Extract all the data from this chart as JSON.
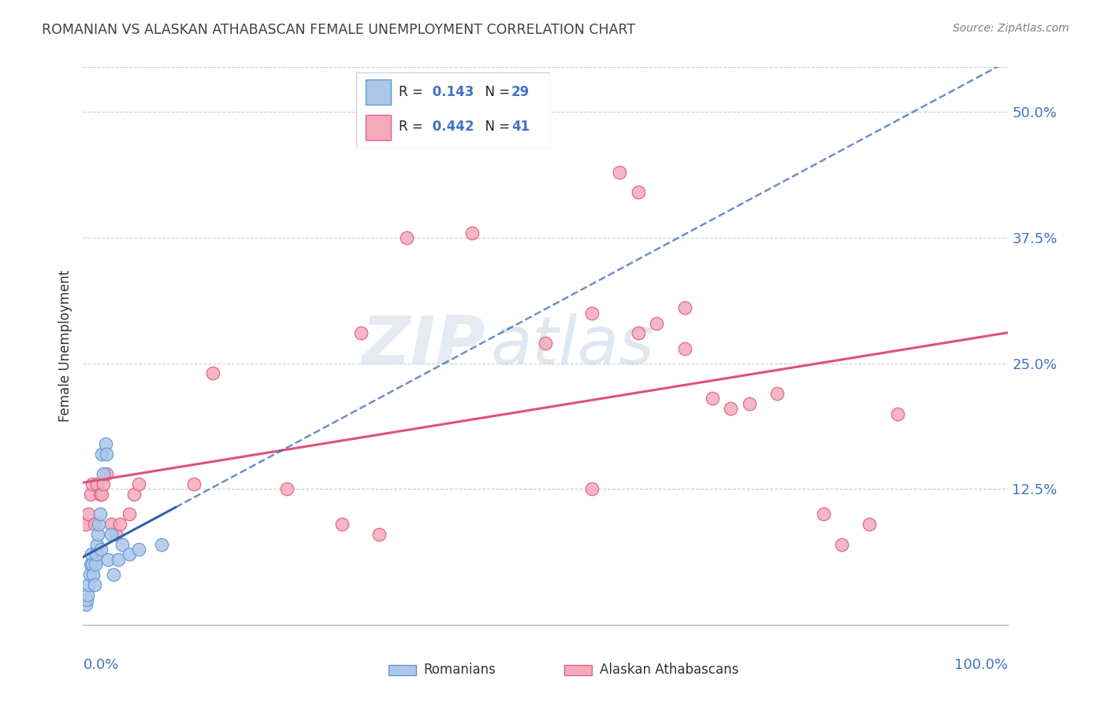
{
  "title": "ROMANIAN VS ALASKAN ATHABASCAN FEMALE UNEMPLOYMENT CORRELATION CHART",
  "source": "Source: ZipAtlas.com",
  "ylabel": "Female Unemployment",
  "watermark_zip": "ZIP",
  "watermark_atlas": "atlas",
  "romanian_R": "0.143",
  "romanian_N": "29",
  "athabascan_R": "0.442",
  "athabascan_N": "41",
  "legend_label1": "Romanians",
  "legend_label2": "Alaskan Athabascans",
  "romanian_color": "#aec6e8",
  "romanian_edge": "#5b9bd5",
  "athabascan_color": "#f4aabc",
  "athabascan_edge": "#e06080",
  "romanian_line_color": "#3060b0",
  "athabascan_line_color": "#e0507a",
  "blue_text": "#4472c4",
  "title_color": "#404040",
  "source_color": "#808080",
  "grid_color": "#cccccc",
  "romanian_x": [
    0.003,
    0.004,
    0.005,
    0.006,
    0.007,
    0.008,
    0.009,
    0.01,
    0.011,
    0.012,
    0.013,
    0.014,
    0.015,
    0.016,
    0.017,
    0.018,
    0.019,
    0.02,
    0.022,
    0.024,
    0.025,
    0.027,
    0.03,
    0.033,
    0.038,
    0.042,
    0.05,
    0.06,
    0.085
  ],
  "romanian_y": [
    0.01,
    0.015,
    0.02,
    0.03,
    0.04,
    0.05,
    0.06,
    0.05,
    0.04,
    0.03,
    0.05,
    0.06,
    0.07,
    0.08,
    0.09,
    0.1,
    0.065,
    0.16,
    0.14,
    0.17,
    0.16,
    0.055,
    0.08,
    0.04,
    0.055,
    0.07,
    0.06,
    0.065,
    0.07
  ],
  "athabascan_x": [
    0.003,
    0.006,
    0.008,
    0.01,
    0.012,
    0.015,
    0.018,
    0.02,
    0.022,
    0.025,
    0.03,
    0.035,
    0.04,
    0.05,
    0.055,
    0.06,
    0.12,
    0.14,
    0.3,
    0.35,
    0.42,
    0.5,
    0.55,
    0.58,
    0.6,
    0.62,
    0.65,
    0.7,
    0.72,
    0.75,
    0.8,
    0.82,
    0.85,
    0.88,
    0.6,
    0.65,
    0.68,
    0.22,
    0.28,
    0.32,
    0.55
  ],
  "athabascan_y": [
    0.09,
    0.1,
    0.12,
    0.13,
    0.09,
    0.13,
    0.12,
    0.12,
    0.13,
    0.14,
    0.09,
    0.08,
    0.09,
    0.1,
    0.12,
    0.13,
    0.13,
    0.24,
    0.28,
    0.375,
    0.38,
    0.27,
    0.3,
    0.44,
    0.42,
    0.29,
    0.305,
    0.205,
    0.21,
    0.22,
    0.1,
    0.07,
    0.09,
    0.2,
    0.28,
    0.265,
    0.215,
    0.125,
    0.09,
    0.08,
    0.125
  ],
  "xlim": [
    0,
    1.0
  ],
  "ylim": [
    -0.01,
    0.545
  ],
  "yticks": [
    0.0,
    0.125,
    0.25,
    0.375,
    0.5
  ],
  "ytick_labels": [
    "",
    "12.5%",
    "25.0%",
    "37.5%",
    "50.0%"
  ]
}
